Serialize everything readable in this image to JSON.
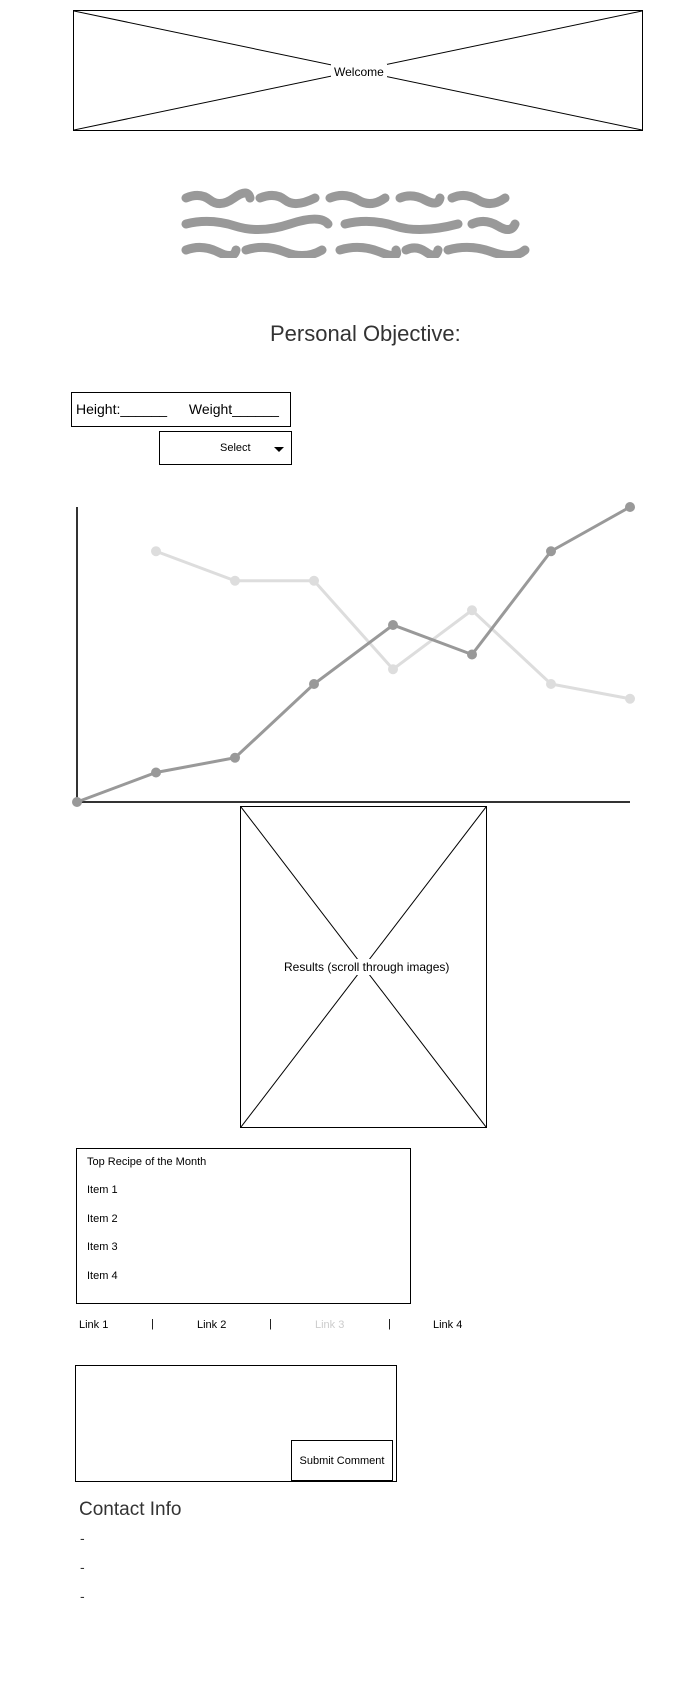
{
  "hero": {
    "label": "Welcome"
  },
  "objective": {
    "title": "Personal Objective:"
  },
  "measure_field": {
    "height_label": "Height:",
    "height_blank": "______",
    "weight_label": "Weight",
    "weight_blank": "______"
  },
  "select": {
    "value": "Select",
    "icon": "caret-down-icon"
  },
  "chart_data": {
    "type": "line",
    "x": [
      0,
      1,
      2,
      3,
      4,
      5,
      6,
      7
    ],
    "series": [
      {
        "values": [
          0,
          1,
          1.5,
          4,
          6,
          5,
          8.5,
          10
        ],
        "color": "#999999"
      },
      {
        "values": [
          null,
          8.5,
          7.5,
          7.5,
          4.5,
          6.5,
          4,
          3.5
        ],
        "color": "#dddddd"
      }
    ],
    "xlim": [
      0,
      7
    ],
    "ylim": [
      0,
      10
    ],
    "grid": false
  },
  "results": {
    "label": "Results (scroll through images)"
  },
  "recipes": {
    "title": "Top Recipe of the Month",
    "items": [
      "Item 1",
      "Item 2",
      "Item 3",
      "Item 4"
    ]
  },
  "links": {
    "items": [
      "Link 1",
      "Link 2",
      "Link 3",
      "Link 4"
    ],
    "separator": "|",
    "disabled_color": "#cccccc"
  },
  "comment": {
    "submit_label": "Submit Comment"
  },
  "contact": {
    "title": "Contact Info",
    "lines": [
      "-",
      "-",
      "-"
    ]
  }
}
